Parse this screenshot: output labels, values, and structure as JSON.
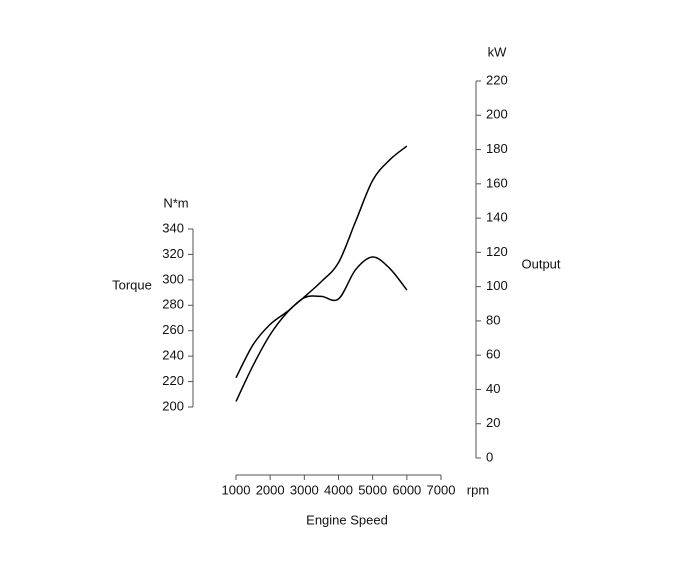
{
  "chart_data": {
    "type": "line",
    "x_label": "Engine Speed",
    "x_unit": "rpm",
    "y_label": "Torque",
    "y_unit": "N*m",
    "y2_label": "Output",
    "y2_unit": "kW",
    "x": [
      1000,
      1500,
      2000,
      2500,
      3000,
      3500,
      4000,
      4500,
      5000,
      5500,
      6000
    ],
    "xlim": [
      1000,
      7000
    ],
    "xticks": [
      1000,
      2000,
      3000,
      4000,
      5000,
      6000,
      7000
    ],
    "ylim": [
      200,
      340
    ],
    "yticks": [
      200,
      220,
      240,
      260,
      280,
      300,
      320,
      340
    ],
    "y2lim": [
      0,
      220
    ],
    "y2ticks": [
      0,
      20,
      40,
      60,
      80,
      100,
      120,
      140,
      160,
      180,
      200,
      220
    ],
    "series": [
      {
        "color": "#000000",
        "axis": "y",
        "values": [
          223,
          249,
          265,
          275,
          286,
          287,
          285,
          308,
          318,
          309,
          292
        ]
      },
      {
        "color": "#000000",
        "axis": "y2",
        "values": [
          33,
          54,
          72,
          85,
          94,
          103,
          114,
          138,
          162,
          174,
          182
        ]
      }
    ]
  }
}
